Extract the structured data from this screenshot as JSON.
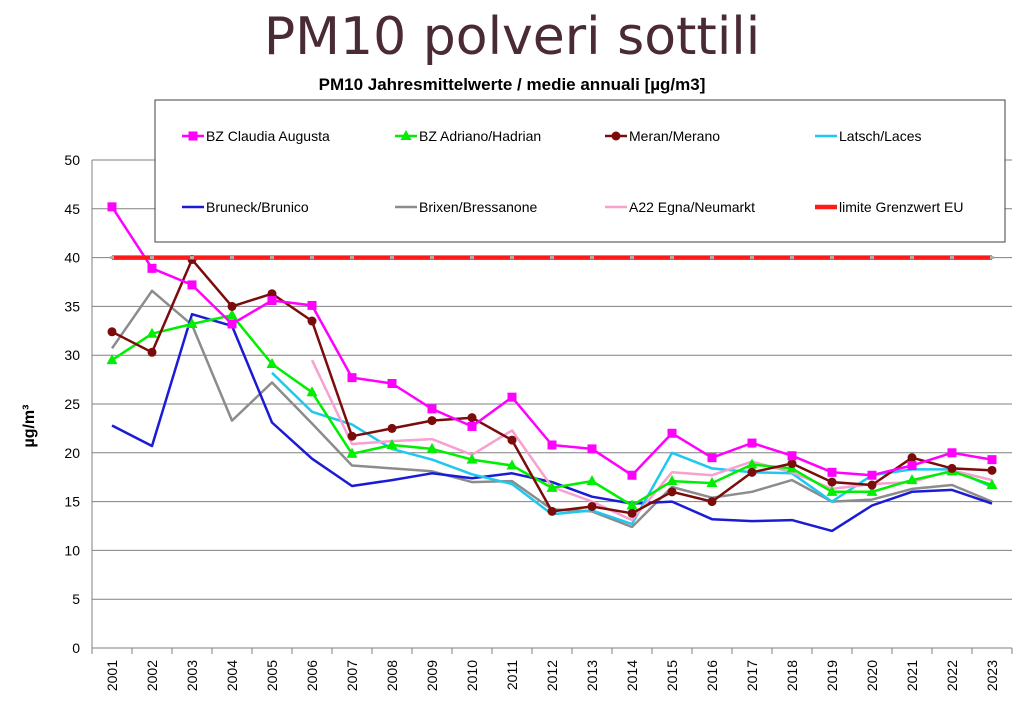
{
  "title": "PM10 polveri sottili",
  "chart_data": {
    "type": "line",
    "subtitle": "PM10 Jahresmittelwerte / medie annuali [µg/m3]",
    "ylabel": "µg/m³",
    "xlabel": "",
    "ylim": [
      0,
      50
    ],
    "yticks": [
      0,
      5,
      10,
      15,
      20,
      25,
      30,
      35,
      40,
      45,
      50
    ],
    "grid": true,
    "legend_position": "top",
    "categories": [
      "2001",
      "2002",
      "2003",
      "2004",
      "2005",
      "2006",
      "2007",
      "2008",
      "2009",
      "2010",
      "2011",
      "2012",
      "2013",
      "2014",
      "2015",
      "2016",
      "2017",
      "2018",
      "2019",
      "2020",
      "2021",
      "2022",
      "2023"
    ],
    "series": [
      {
        "name": "BZ Claudia Augusta",
        "color": "#ff00ff",
        "marker": "square",
        "values": [
          45.2,
          38.9,
          37.2,
          33.2,
          35.6,
          35.1,
          27.7,
          27.1,
          24.5,
          22.7,
          25.7,
          20.8,
          20.4,
          17.7,
          22.0,
          19.5,
          21.0,
          19.7,
          18.0,
          17.7,
          18.7,
          20.0,
          19.3
        ]
      },
      {
        "name": "BZ Adriano/Hadrian",
        "color": "#00ee00",
        "marker": "triangle",
        "values": [
          29.5,
          32.2,
          33.2,
          34.1,
          29.1,
          26.2,
          19.9,
          20.8,
          20.4,
          19.3,
          18.7,
          16.4,
          17.1,
          14.6,
          17.1,
          16.9,
          18.8,
          18.4,
          16.0,
          16.0,
          17.2,
          18.1,
          16.7
        ]
      },
      {
        "name": "Meran/Merano",
        "color": "#7b0c0c",
        "marker": "circle",
        "values": [
          32.4,
          30.3,
          39.8,
          35.0,
          36.3,
          33.5,
          21.7,
          22.5,
          23.3,
          23.6,
          21.3,
          14.0,
          14.5,
          13.8,
          16.0,
          15.0,
          18.0,
          18.9,
          17.0,
          16.7,
          19.5,
          18.4,
          18.2
        ]
      },
      {
        "name": "Latsch/Laces",
        "color": "#1ec8ee",
        "marker": "none",
        "values": [
          null,
          null,
          null,
          null,
          28.2,
          24.2,
          22.9,
          20.4,
          19.3,
          17.8,
          16.8,
          13.7,
          14.1,
          12.7,
          20.0,
          18.4,
          18.0,
          17.9,
          15.0,
          17.7,
          18.3,
          18.3,
          16.5
        ]
      },
      {
        "name": "Bruneck/Brunico",
        "color": "#1b1bd6",
        "marker": "none",
        "values": [
          22.8,
          20.7,
          34.2,
          33.0,
          23.1,
          19.4,
          16.6,
          17.2,
          17.9,
          17.4,
          17.9,
          17.0,
          15.5,
          14.8,
          15.0,
          13.2,
          13.0,
          13.1,
          12.0,
          14.6,
          16.0,
          16.2,
          14.8
        ]
      },
      {
        "name": "Brixen/Bressanone",
        "color": "#8c8c8c",
        "marker": "none",
        "values": [
          30.7,
          36.6,
          33.1,
          23.3,
          27.2,
          23.0,
          18.7,
          18.4,
          18.1,
          17.0,
          17.1,
          14.2,
          14.0,
          12.4,
          16.5,
          15.4,
          16.0,
          17.2,
          15.0,
          15.2,
          16.3,
          16.7,
          15.0
        ]
      },
      {
        "name": "A22 Egna/Neumarkt",
        "color": "#f8a0d0",
        "marker": "none",
        "values": [
          null,
          null,
          null,
          null,
          null,
          29.5,
          20.9,
          21.2,
          21.4,
          19.8,
          22.3,
          16.5,
          15.0,
          13.1,
          18.0,
          17.7,
          19.1,
          18.0,
          16.3,
          16.8,
          17.0,
          18.2,
          17.2
        ]
      },
      {
        "name": "limite Grenzwert EU",
        "color": "#ff1a1a",
        "marker": "none",
        "dashed": true,
        "values": [
          40,
          40,
          40,
          40,
          40,
          40,
          40,
          40,
          40,
          40,
          40,
          40,
          40,
          40,
          40,
          40,
          40,
          40,
          40,
          40,
          40,
          40,
          40
        ]
      }
    ]
  }
}
